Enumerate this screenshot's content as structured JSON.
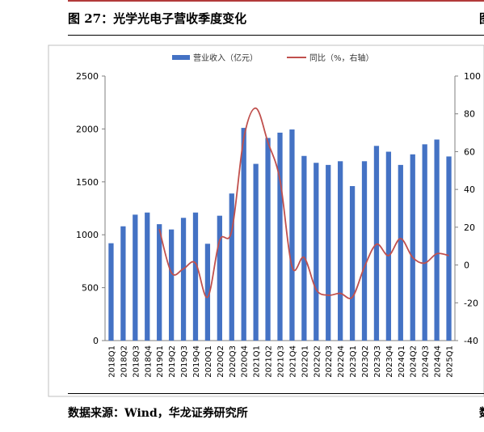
{
  "figure": {
    "title": "图 27：光学光电子营收季度变化",
    "source": "数据来源：Wind，华龙证券研究所",
    "edge_glyph_top": "图",
    "edge_glyph_bottom": "数"
  },
  "colors": {
    "bar": "#4472c4",
    "line": "#c0504d",
    "frame": "#bfbfbf"
  },
  "chart_data": {
    "type": "bar",
    "categories": [
      "2018Q1",
      "2018Q2",
      "2018Q3",
      "2018Q4",
      "2019Q1",
      "2019Q2",
      "2019Q3",
      "2019Q4",
      "2020Q1",
      "2020Q2",
      "2020Q3",
      "2020Q4",
      "2021Q1",
      "2021Q2",
      "2021Q3",
      "2021Q4",
      "2022Q1",
      "2022Q2",
      "2022Q3",
      "2022Q4",
      "2023Q1",
      "2023Q2",
      "2023Q3",
      "2023Q4",
      "2024Q1",
      "2024Q2",
      "2024Q3",
      "2024Q4",
      "2025Q1"
    ],
    "series": [
      {
        "name": "营业收入（亿元）",
        "type": "bar",
        "axis": "left",
        "values": [
          920,
          1080,
          1190,
          1210,
          1100,
          1050,
          1160,
          1210,
          915,
          1180,
          1390,
          2010,
          1670,
          1915,
          1965,
          1995,
          1745,
          1680,
          1660,
          1695,
          1460,
          1695,
          1840,
          1785,
          1660,
          1760,
          1855,
          1900,
          1740
        ]
      },
      {
        "name": "同比（%，右轴）",
        "type": "line",
        "axis": "right",
        "values": [
          null,
          null,
          null,
          null,
          19,
          -4,
          -2,
          1,
          -17,
          13,
          18,
          67,
          83,
          65,
          45,
          -1,
          4,
          -13,
          -16,
          -15,
          -17,
          -1,
          11,
          5,
          14,
          4,
          1,
          6,
          5
        ]
      }
    ],
    "left_axis": {
      "ylim": [
        0,
        2500
      ],
      "ticks": [
        0,
        500,
        1000,
        1500,
        2000,
        2500
      ]
    },
    "right_axis": {
      "ylim": [
        -40,
        100
      ],
      "ticks": [
        -40,
        -20,
        0,
        20,
        40,
        60,
        80,
        100
      ]
    },
    "legend_position": "top-center",
    "grid": false
  }
}
